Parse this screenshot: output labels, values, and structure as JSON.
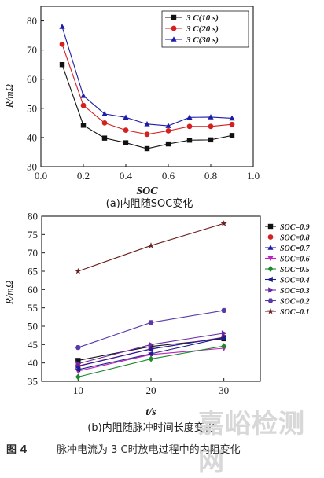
{
  "figure_caption": {
    "number": "图 4",
    "text": "脉冲电流为 3 C时放电过程中的内阻变化"
  },
  "watermark": "嘉峪检测网",
  "colors": {
    "black": "#111111",
    "red": "#d42020",
    "blue": "#1c1ca8"
  },
  "chart_data": [
    {
      "type": "line",
      "subtitle": "(a)内阻随SOC变化",
      "xlabel": "SOC",
      "ylabel": "R/mΩ",
      "xlim": [
        0.0,
        1.0
      ],
      "ylim": [
        30,
        85
      ],
      "xticks": [
        0.0,
        0.2,
        0.4,
        0.6,
        0.8,
        1.0
      ],
      "yticks": [
        30,
        40,
        50,
        60,
        70,
        80
      ],
      "legend_position": "top-right",
      "x": [
        0.1,
        0.2,
        0.3,
        0.4,
        0.5,
        0.6,
        0.7,
        0.8,
        0.9
      ],
      "series": [
        {
          "name": "3 C(10 s)",
          "marker": "square",
          "color": "#111111",
          "values": [
            65.0,
            44.2,
            39.8,
            38.2,
            36.2,
            37.8,
            39.1,
            39.2,
            40.7
          ]
        },
        {
          "name": "3 C(20 s)",
          "marker": "circle",
          "color": "#d42020",
          "values": [
            72.0,
            51.0,
            45.0,
            42.5,
            41.1,
            42.3,
            43.8,
            43.8,
            44.5
          ]
        },
        {
          "name": "3 C(30 s)",
          "marker": "triangle",
          "color": "#1c1ca8",
          "values": [
            78.0,
            54.3,
            48.1,
            46.9,
            44.6,
            44.0,
            46.9,
            47.0,
            46.6
          ]
        }
      ]
    },
    {
      "type": "line",
      "subtitle": "(b)内阻随脉冲时间长度变化",
      "xlabel": "t/s",
      "ylabel": "R/mΩ",
      "xlim": [
        5,
        35
      ],
      "ylim": [
        35,
        80
      ],
      "xticks": [
        10,
        20,
        30
      ],
      "yticks": [
        35,
        40,
        45,
        50,
        55,
        60,
        65,
        70,
        75,
        80
      ],
      "legend_position": "right",
      "x": [
        10,
        20,
        30
      ],
      "series": [
        {
          "name": "SOC=0.9",
          "marker": "square",
          "color": "#111111",
          "values": [
            40.7,
            44.5,
            46.6
          ]
        },
        {
          "name": "SOC=0.8",
          "marker": "circle",
          "color": "#d42020",
          "values": [
            39.2,
            43.8,
            47.0
          ]
        },
        {
          "name": "SOC=0.7",
          "marker": "triangle",
          "color": "#1c1ca8",
          "values": [
            39.1,
            43.8,
            46.9
          ]
        },
        {
          "name": "SOC=0.6",
          "marker": "triangle-down",
          "color": "#c020c0",
          "values": [
            37.8,
            42.3,
            44.0
          ]
        },
        {
          "name": "SOC=0.5",
          "marker": "diamond",
          "color": "#1a8a2a",
          "values": [
            36.2,
            41.1,
            44.6
          ]
        },
        {
          "name": "SOC=0.4",
          "marker": "triangle-left",
          "color": "#1c1c8a",
          "values": [
            38.2,
            42.5,
            46.9
          ]
        },
        {
          "name": "SOC=0.3",
          "marker": "triangle-right",
          "color": "#6a2aa8",
          "values": [
            39.8,
            45.0,
            48.1
          ]
        },
        {
          "name": "SOC=0.2",
          "marker": "hexagon",
          "color": "#5a3aa8",
          "values": [
            44.2,
            51.0,
            54.3
          ]
        },
        {
          "name": "SOC=0.1",
          "marker": "star",
          "color": "#6b2020",
          "values": [
            65.0,
            72.0,
            78.0
          ]
        }
      ]
    }
  ]
}
